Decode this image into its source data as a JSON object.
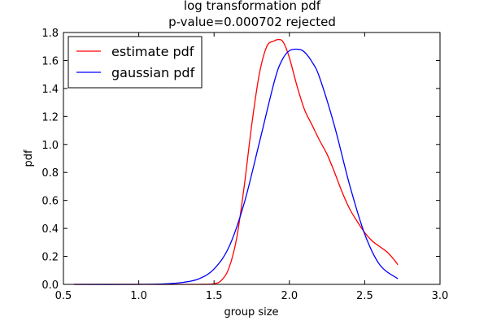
{
  "chart_data": {
    "type": "line",
    "title_lines": [
      "log transformation pdf",
      "p-value=0.000702  rejected"
    ],
    "xlabel": "group size",
    "ylabel": "pdf",
    "xlim": [
      0.5,
      3.0
    ],
    "ylim": [
      0.0,
      1.8
    ],
    "xticks": [
      0.5,
      1.0,
      1.5,
      2.0,
      2.5,
      3.0
    ],
    "xtick_labels": [
      "0.5",
      "1.0",
      "1.5",
      "2.0",
      "2.5",
      "3.0"
    ],
    "yticks": [
      0.0,
      0.2,
      0.4,
      0.6,
      0.8,
      1.0,
      1.2,
      1.4,
      1.6,
      1.8
    ],
    "ytick_labels": [
      "0.0",
      "0.2",
      "0.4",
      "0.6",
      "0.8",
      "1.0",
      "1.2",
      "1.4",
      "1.6",
      "1.8"
    ],
    "grid": false,
    "legend_position": "top-left",
    "series": [
      {
        "name": "estimate pdf",
        "color": "#ff0000",
        "x": [
          0.57,
          1.0,
          1.4,
          1.5,
          1.55,
          1.6,
          1.65,
          1.7,
          1.75,
          1.8,
          1.85,
          1.9,
          1.93,
          1.96,
          2.0,
          2.05,
          2.1,
          2.15,
          2.2,
          2.25,
          2.3,
          2.35,
          2.4,
          2.45,
          2.5,
          2.55,
          2.6,
          2.65,
          2.7,
          2.72
        ],
        "y": [
          0.0,
          0.0,
          0.0,
          0.005,
          0.03,
          0.12,
          0.33,
          0.7,
          1.14,
          1.5,
          1.7,
          1.74,
          1.75,
          1.73,
          1.62,
          1.42,
          1.25,
          1.14,
          1.03,
          0.93,
          0.8,
          0.66,
          0.54,
          0.45,
          0.37,
          0.31,
          0.27,
          0.23,
          0.17,
          0.14
        ]
      },
      {
        "name": "gaussian pdf",
        "color": "#0000ff",
        "x": [
          0.57,
          1.0,
          1.2,
          1.3,
          1.4,
          1.5,
          1.6,
          1.7,
          1.8,
          1.9,
          1.95,
          2.0,
          2.06,
          2.1,
          2.15,
          2.2,
          2.3,
          2.4,
          2.5,
          2.6,
          2.72
        ],
        "y": [
          0.0,
          0.0,
          0.005,
          0.015,
          0.04,
          0.11,
          0.27,
          0.58,
          1.01,
          1.45,
          1.6,
          1.67,
          1.68,
          1.66,
          1.59,
          1.48,
          1.13,
          0.71,
          0.36,
          0.14,
          0.04
        ]
      }
    ]
  }
}
